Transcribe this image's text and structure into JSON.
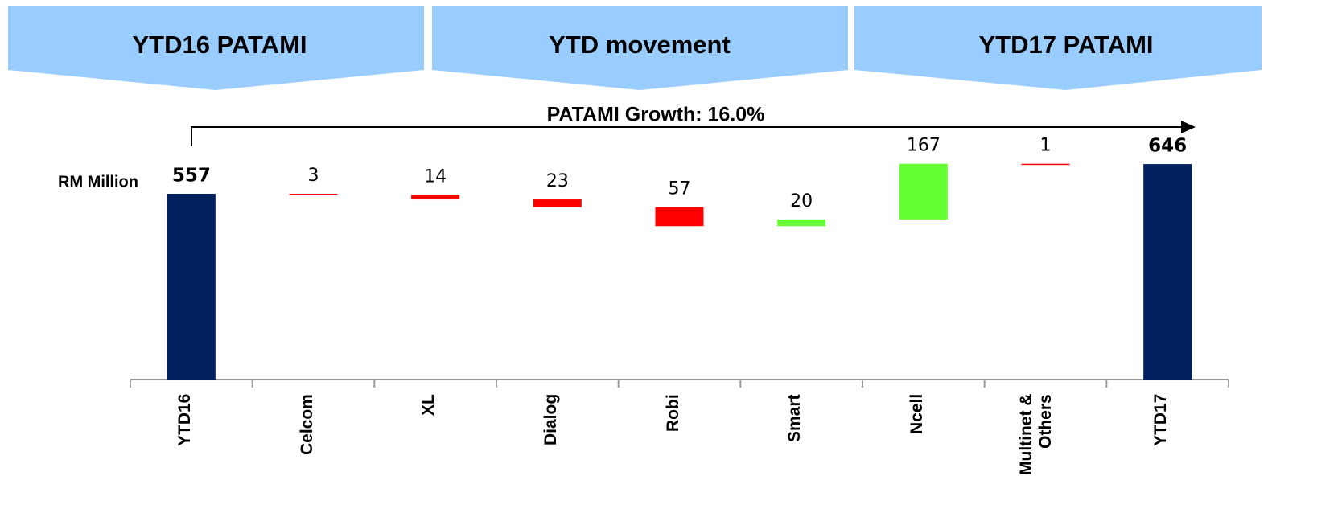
{
  "headers": [
    "YTD16 PATAMI",
    "YTD movement",
    "YTD17 PATAMI"
  ],
  "chart_data": {
    "type": "waterfall",
    "annotation": "PATAMI Growth: 16.0%",
    "y_label": "RM Million",
    "categories": [
      "YTD16",
      "Celcom",
      "XL",
      "Dialog",
      "Robi",
      "Smart",
      "Ncell",
      "Multinet & Others",
      "YTD17"
    ],
    "values": [
      557,
      -3,
      -14,
      -23,
      -57,
      20,
      167,
      -1,
      646
    ],
    "value_labels": [
      "557",
      "3",
      "14",
      "23",
      "57",
      "20",
      "167",
      "1",
      "646"
    ],
    "totals": [
      true,
      false,
      false,
      false,
      false,
      false,
      false,
      false,
      true
    ],
    "colors": {
      "total": "#002060",
      "increase": "#66ff33",
      "decrease": "#ff0000"
    }
  }
}
